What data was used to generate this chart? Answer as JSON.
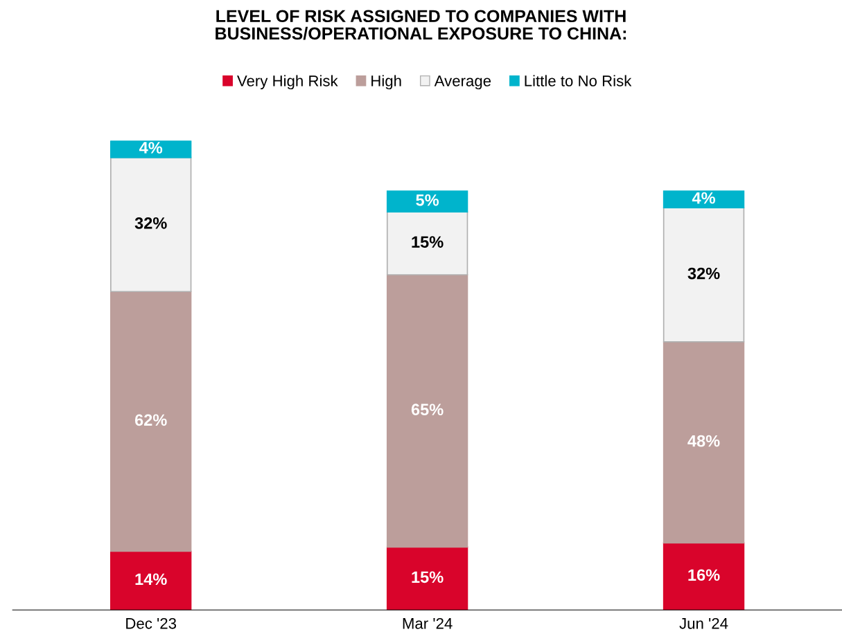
{
  "chart_data": {
    "type": "bar",
    "stacked": true,
    "tick_labels": "x",
    "title": "LEVEL OF RISK ASSIGNED TO COMPANIES WITH\nBUSINESS/OPERATIONAL EXPOSURE TO CHINA:",
    "categories": [
      "Dec '23",
      "Mar '24",
      "Jun '24"
    ],
    "series": [
      {
        "name": "Very High Risk",
        "color": "#d9042b",
        "values": [
          14,
          15,
          16
        ],
        "value_labels": [
          "14%",
          "15%",
          "16%"
        ]
      },
      {
        "name": "High",
        "color": "#bc9e9b",
        "values": [
          62,
          65,
          48
        ],
        "value_labels": [
          "62%",
          "65%",
          "48%"
        ]
      },
      {
        "name": "Average",
        "color": "#f2f2f2",
        "values": [
          32,
          15,
          32
        ],
        "value_labels": [
          "32%",
          "15%",
          "32%"
        ]
      },
      {
        "name": "Little to No Risk",
        "color": "#00b4cc",
        "values": [
          4,
          5,
          4
        ],
        "value_labels": [
          "4%",
          "5%",
          "4%"
        ]
      }
    ],
    "legend": "top",
    "grid": false
  }
}
